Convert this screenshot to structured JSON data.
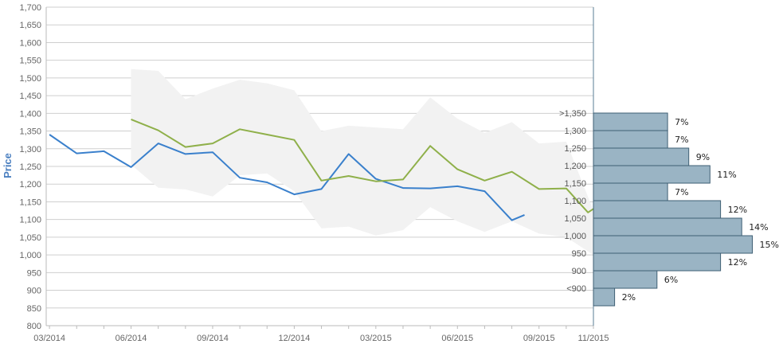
{
  "chart_data": [
    {
      "type": "line",
      "ylabel": "Price",
      "ylim": [
        800,
        1700
      ],
      "y_ticks": [
        800,
        850,
        900,
        950,
        1000,
        1050,
        1100,
        1150,
        1200,
        1250,
        1300,
        1350,
        1400,
        1450,
        1500,
        1550,
        1600,
        1650,
        1700
      ],
      "y_tick_labels": [
        "800",
        "850",
        "900",
        "950",
        "1,000",
        "1,050",
        "1,100",
        "1,150",
        "1,200",
        "1,250",
        "1,300",
        "1,350",
        "1,400",
        "1,450",
        "1,500",
        "1,550",
        "1,600",
        "1,650",
        "1,700"
      ],
      "xlim": [
        "2014-03",
        "2015-11"
      ],
      "x_ticks": [
        "2014-03",
        "2014-06",
        "2014-09",
        "2014-12",
        "2015-03",
        "2015-06",
        "2015-09",
        "2015-11"
      ],
      "x_tick_labels": [
        "03/2014",
        "06/2014",
        "09/2014",
        "12/2014",
        "03/2015",
        "06/2015",
        "09/2015",
        "11/2015"
      ],
      "grid": true,
      "band": {
        "x": [
          "2014-06",
          "2014-07",
          "2014-08",
          "2014-09",
          "2014-10",
          "2014-11",
          "2014-12",
          "2015-01",
          "2015-02",
          "2015-03",
          "2015-04",
          "2015-05",
          "2015-06",
          "2015-07",
          "2015-08",
          "2015-09",
          "2015-10",
          "2015-11"
        ],
        "low": [
          1255,
          1190,
          1185,
          1165,
          1225,
          1230,
          1180,
          1075,
          1080,
          1055,
          1070,
          1135,
          1095,
          1065,
          1095,
          1060,
          1050,
          1000
        ],
        "high": [
          1525,
          1520,
          1440,
          1470,
          1495,
          1485,
          1465,
          1350,
          1365,
          1360,
          1355,
          1445,
          1385,
          1345,
          1375,
          1315,
          1320,
          1125
        ]
      },
      "series": [
        {
          "color": "#3a80cc",
          "x": [
            "2014-03",
            "2014-04",
            "2014-05",
            "2014-06",
            "2014-07",
            "2014-08",
            "2014-09",
            "2014-10",
            "2014-11",
            "2014-12",
            "2015-01",
            "2015-02",
            "2015-03",
            "2015-04",
            "2015-05",
            "2015-06",
            "2015-07",
            "2015-08",
            "2015-08-15"
          ],
          "values": [
            1340,
            1287,
            1293,
            1248,
            1315,
            1285,
            1290,
            1218,
            1205,
            1171,
            1186,
            1285,
            1215,
            1189,
            1188,
            1194,
            1180,
            1098,
            1113
          ]
        },
        {
          "color": "#8fb04a",
          "x": [
            "2014-06",
            "2014-07",
            "2014-08",
            "2014-09",
            "2014-10",
            "2014-11",
            "2014-12",
            "2015-01",
            "2015-02",
            "2015-03",
            "2015-04",
            "2015-05",
            "2015-06",
            "2015-07",
            "2015-08",
            "2015-09",
            "2015-10",
            "2015-10-25",
            "2015-11"
          ],
          "values": [
            1383,
            1352,
            1305,
            1315,
            1355,
            1340,
            1325,
            1210,
            1223,
            1208,
            1213,
            1308,
            1242,
            1210,
            1235,
            1186,
            1188,
            1120,
            1130
          ]
        }
      ]
    },
    {
      "type": "bar",
      "orientation": "horizontal",
      "categories": [
        ">1,350",
        "1,300",
        "1,250",
        "1,200",
        "1,150",
        "1,100",
        "1,050",
        "1,000",
        "950",
        "900",
        "<900"
      ],
      "values": [
        7,
        7,
        9,
        11,
        7,
        12,
        14,
        15,
        12,
        6,
        2
      ],
      "value_labels": [
        "7%",
        "7%",
        "9%",
        "11%",
        "7%",
        "12%",
        "14%",
        "15%",
        "12%",
        "6%",
        "2%"
      ],
      "color": "#9ab4c4"
    }
  ]
}
